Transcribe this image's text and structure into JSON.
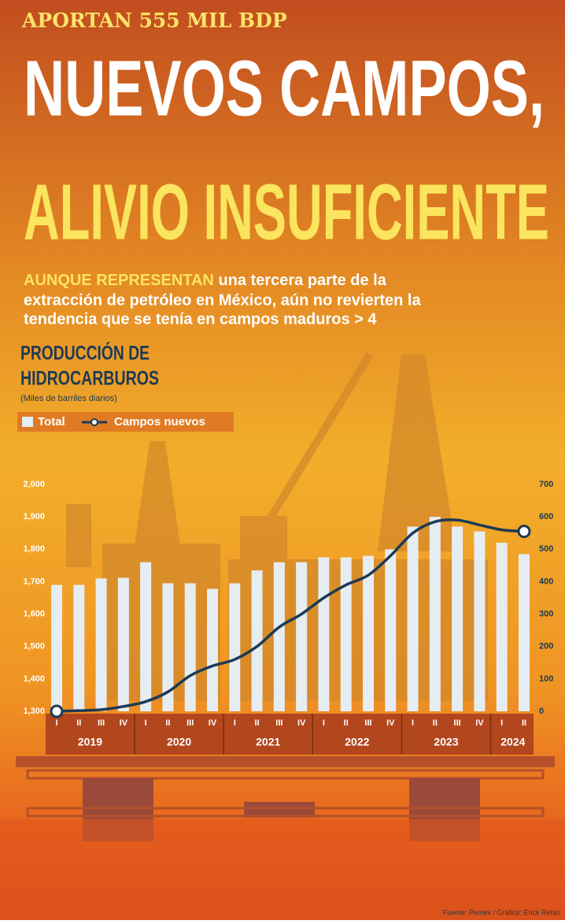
{
  "header": {
    "kicker": "APORTAN 555 MIL BDP",
    "title": [
      "NUEVOS CAMPOS,",
      "ALIVIO INSUFICIENTE"
    ],
    "subtitle_lead": "AUNQUE REPRESENTAN",
    "subtitle_lines": [
      "una tercera parte de la",
      "extracción de petróleo en México, aún no revierten la",
      "tendencia que se tenía en campos maduros > 4"
    ]
  },
  "chart_data": {
    "type": "bar_line",
    "title": [
      "PRODUCCIÓN DE",
      "HIDROCARBUROS"
    ],
    "units": "(Miles de barriles diarios)",
    "categories": [
      "I",
      "II",
      "III",
      "IV",
      "I",
      "II",
      "III",
      "IV",
      "I",
      "II",
      "III",
      "IV",
      "I",
      "II",
      "III",
      "IV",
      "I",
      "II",
      "III",
      "IV",
      "I",
      "II"
    ],
    "years": [
      "2019",
      "2020",
      "2021",
      "2022",
      "2023",
      "2024"
    ],
    "series": [
      {
        "name": "Total",
        "color": "#e6edf2",
        "values": [
          1690,
          1690,
          1710,
          1712,
          1760,
          1695,
          1695,
          1678,
          1695,
          1735,
          1760,
          1760,
          1775,
          1775,
          1780,
          1800,
          1870,
          1900,
          1870,
          1855,
          1820,
          1785
        ]
      },
      {
        "name": "Campos nuevos",
        "color": "#1c3a55",
        "axis": "y2",
        "values": [
          0,
          2,
          5,
          15,
          30,
          60,
          110,
          140,
          160,
          200,
          260,
          300,
          350,
          390,
          420,
          480,
          550,
          585,
          590,
          575,
          560,
          555
        ]
      }
    ],
    "ylim": [
      1300,
      2000
    ],
    "yticks": [
      {
        "value": 1300,
        "label": "1,300"
      },
      {
        "value": 1400,
        "label": "1,400"
      },
      {
        "value": 1500,
        "label": "1,500"
      },
      {
        "value": 1600,
        "label": "1,600"
      },
      {
        "value": 1700,
        "label": "1,700"
      },
      {
        "value": 1800,
        "label": "1,800"
      },
      {
        "value": 1900,
        "label": "1,900"
      },
      {
        "value": 2000,
        "label": "2,000"
      }
    ],
    "y2lim": [
      0,
      700
    ],
    "y2ticks": [
      0,
      100,
      200,
      300,
      400,
      500,
      600,
      700
    ],
    "grid": false
  },
  "footer": "Fuente: Pemex / Gráfico: Erick Retan"
}
